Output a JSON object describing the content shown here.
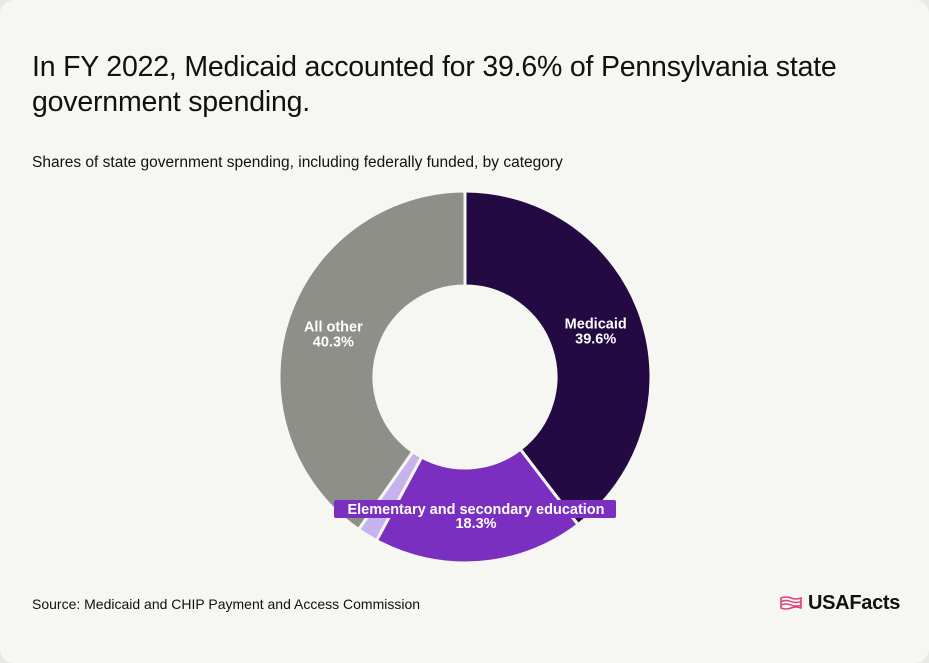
{
  "header": {
    "title": "In FY 2022, Medicaid accounted for 39.6% of Pennsylvania state government spending.",
    "subtitle": "Shares of state government spending, including federally funded, by category"
  },
  "footer": {
    "source": "Source: Medicaid and CHIP Payment and Access Commission",
    "brand": "USAFacts"
  },
  "chart_data": {
    "type": "pie",
    "donut": true,
    "slices": [
      {
        "label": "Medicaid",
        "value": 39.6,
        "value_label": "39.6%",
        "color": "#230a42"
      },
      {
        "label": "Elementary and secondary education",
        "value": 18.3,
        "value_label": "18.3%",
        "color": "#7a2fc0"
      },
      {
        "label": "",
        "value": 1.8,
        "value_label": "",
        "color": "#c8b2ee"
      },
      {
        "label": "All other",
        "value": 40.3,
        "value_label": "40.3%",
        "color": "#8f8f8a"
      }
    ]
  }
}
